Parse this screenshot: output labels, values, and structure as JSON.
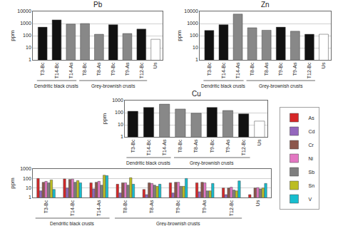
{
  "chart_data": [
    {
      "type": "bar",
      "title": "Pb",
      "categories": [
        "T3-Bc",
        "T14-Bc",
        "T14-As",
        "T8-Bc",
        "T8-As",
        "T9-Bc",
        "T9-As",
        "T12-Bc",
        "Us"
      ],
      "values": [
        500,
        2000,
        900,
        1000,
        130,
        800,
        150,
        350,
        50
      ],
      "colors": [
        "#111111",
        "#111111",
        "#888888",
        "#888888",
        "#888888",
        "#111111",
        "#888888",
        "#111111",
        "#ffffff"
      ],
      "ylabel": "ppm",
      "log": "y",
      "ylim": [
        1,
        10000
      ],
      "yticks": [
        1,
        10,
        100,
        1000,
        10000
      ],
      "grid": true,
      "annotations": [
        {
          "text": "Dendritic black crusts",
          "categories": [
            "T3-Bc",
            "T14-Bc",
            "T14-As"
          ]
        },
        {
          "text": "Grey-brownish crusts",
          "categories": [
            "T8-Bc",
            "T8-As",
            "T9-Bc",
            "T9-As",
            "T12-Bc"
          ]
        }
      ]
    },
    {
      "type": "bar",
      "title": "Zn",
      "categories": [
        "T3-Bc",
        "T14-Bc",
        "T14-As",
        "T8-Bc",
        "T8-As",
        "T9-Bc",
        "T9-As",
        "T12-Bc",
        "Us"
      ],
      "values": [
        270,
        800,
        6000,
        450,
        280,
        500,
        230,
        130,
        130
      ],
      "colors": [
        "#111111",
        "#111111",
        "#888888",
        "#888888",
        "#888888",
        "#111111",
        "#888888",
        "#111111",
        "#ffffff"
      ],
      "ylabel": "ppm",
      "log": "y",
      "ylim": [
        1,
        10000
      ],
      "yticks": [
        1,
        10,
        100,
        1000,
        10000
      ],
      "grid": true,
      "annotations": [
        {
          "text": "Dendritic black crusts",
          "categories": [
            "T3-Bc",
            "T14-Bc",
            "T14-As"
          ]
        },
        {
          "text": "Grey-brownish crusts",
          "categories": [
            "T8-Bc",
            "T8-As",
            "T9-Bc",
            "T9-As",
            "T12-Bc"
          ]
        }
      ]
    },
    {
      "type": "bar",
      "title": "Cu",
      "categories": [
        "T3-Bc",
        "T14-Bc",
        "T14-As",
        "T8-Bc",
        "T8-As",
        "T9-Bc",
        "T9-As",
        "T12-Bc",
        "Us"
      ],
      "values": [
        130,
        270,
        500,
        200,
        90,
        270,
        150,
        80,
        20
      ],
      "colors": [
        "#111111",
        "#111111",
        "#888888",
        "#888888",
        "#888888",
        "#111111",
        "#888888",
        "#111111",
        "#ffffff"
      ],
      "ylabel": "ppm",
      "log": "y",
      "ylim": [
        1,
        1000
      ],
      "yticks": [
        1,
        10,
        100,
        1000
      ],
      "grid": true,
      "annotations": [
        {
          "text": "Dendritic black crusts",
          "categories": [
            "T3-Bc",
            "T14-Bc",
            "T14-As"
          ]
        },
        {
          "text": "Grey-brownish crusts",
          "categories": [
            "T8-Bc",
            "T8-As",
            "T9-Bc",
            "T9-As",
            "T12-Bc"
          ]
        }
      ]
    },
    {
      "type": "bar",
      "categories": [
        "T3-Bc",
        "T14-Bc",
        "T14-As",
        "T8-Bc",
        "T8-As",
        "T9-Bc",
        "T9-As",
        "T12-Bc",
        "Us"
      ],
      "series": [
        {
          "name": "As",
          "values": [
            100,
            90,
            35,
            25,
            7,
            35,
            35,
            10,
            2
          ]
        },
        {
          "name": "Cd",
          "values": [
            5,
            10,
            8,
            3,
            2,
            3,
            4,
            2,
            1
          ]
        },
        {
          "name": "Cr",
          "values": [
            40,
            80,
            40,
            35,
            35,
            40,
            40,
            10,
            10
          ]
        },
        {
          "name": "Ni",
          "values": [
            50,
            85,
            50,
            35,
            30,
            40,
            35,
            12,
            11
          ]
        },
        {
          "name": "Sb",
          "values": [
            35,
            40,
            20,
            20,
            20,
            15,
            5,
            6,
            8
          ]
        },
        {
          "name": "Sn",
          "values": [
            70,
            60,
            220,
            120,
            15,
            15,
            5,
            5,
            10
          ]
        },
        {
          "name": "V",
          "values": [
            7,
            35,
            200,
            25,
            25,
            100,
            30,
            55,
            30
          ]
        }
      ],
      "ylabel": "ppm",
      "log": "y",
      "ylim": [
        1,
        1000
      ],
      "yticks": [
        1,
        10,
        100,
        1000
      ],
      "grid": true,
      "legend": "right",
      "annotations": [
        {
          "text": "Dendritic black crusts",
          "categories": [
            "T3-Bc",
            "T14-Bc",
            "T14-As"
          ]
        },
        {
          "text": "Grey-brownish crusts",
          "categories": [
            "T8-Bc",
            "T8-As",
            "T9-Bc",
            "T9-As",
            "T12-Bc"
          ]
        }
      ]
    }
  ]
}
